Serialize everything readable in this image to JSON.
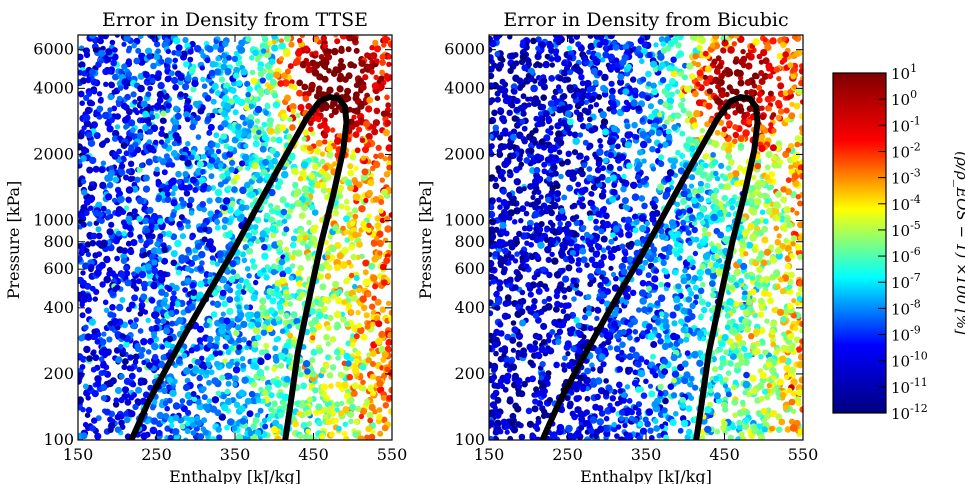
{
  "chart_data": [
    {
      "type": "scatter",
      "title": "Error in Density from TTSE",
      "xlabel": "Enthalpy [kJ/kg]",
      "ylabel": "Pressure [kPa]",
      "xlim": [
        150,
        550
      ],
      "ylim": [
        100,
        7000
      ],
      "yscale": "log",
      "xticks": [
        "150",
        "250",
        "350",
        "450",
        "550"
      ],
      "yticks": [
        {
          "value": 100,
          "label": "100"
        },
        {
          "value": 200,
          "label": "200"
        },
        {
          "value": 400,
          "label": "400"
        },
        {
          "value": 600,
          "label": "600"
        },
        {
          "value": 800,
          "label": "800"
        },
        {
          "value": 1000,
          "label": "1000"
        },
        {
          "value": 2000,
          "label": "2000"
        },
        {
          "value": 4000,
          "label": "4000"
        },
        {
          "value": 6000,
          "label": "6000"
        }
      ],
      "grid": false,
      "color_value": "log10 relative density error [%]",
      "error_field": {
        "base_log10": -9.5,
        "slope_h": 6.5,
        "dome_peak_log10": 2.5,
        "dome_peak_h": 470,
        "dome_peak_p": 4300
      },
      "saturation_curve": [
        {
          "h": 218,
          "p": 100
        },
        {
          "h": 240,
          "p": 150
        },
        {
          "h": 265,
          "p": 220
        },
        {
          "h": 290,
          "p": 320
        },
        {
          "h": 318,
          "p": 480
        },
        {
          "h": 345,
          "p": 700
        },
        {
          "h": 372,
          "p": 1050
        },
        {
          "h": 398,
          "p": 1550
        },
        {
          "h": 422,
          "p": 2200
        },
        {
          "h": 442,
          "p": 2950
        },
        {
          "h": 458,
          "p": 3500
        },
        {
          "h": 470,
          "p": 3650
        },
        {
          "h": 482,
          "p": 3600
        },
        {
          "h": 490,
          "p": 3300
        },
        {
          "h": 492,
          "p": 2800
        },
        {
          "h": 488,
          "p": 2100
        },
        {
          "h": 475,
          "p": 1300
        },
        {
          "h": 460,
          "p": 800
        },
        {
          "h": 445,
          "p": 450
        },
        {
          "h": 430,
          "p": 250
        },
        {
          "h": 420,
          "p": 140
        },
        {
          "h": 414,
          "p": 100
        }
      ]
    },
    {
      "type": "scatter",
      "title": "Error in Density from Bicubic",
      "xlabel": "Enthalpy [kJ/kg]",
      "ylabel": "Pressure [kPa]",
      "xlim": [
        150,
        550
      ],
      "ylim": [
        100,
        7000
      ],
      "yscale": "log",
      "xticks": [
        "150",
        "250",
        "350",
        "450",
        "550"
      ],
      "yticks": [
        {
          "value": 100,
          "label": "100"
        },
        {
          "value": 200,
          "label": "200"
        },
        {
          "value": 400,
          "label": "400"
        },
        {
          "value": 600,
          "label": "600"
        },
        {
          "value": 800,
          "label": "800"
        },
        {
          "value": 1000,
          "label": "1000"
        },
        {
          "value": 2000,
          "label": "2000"
        },
        {
          "value": 4000,
          "label": "4000"
        },
        {
          "value": 6000,
          "label": "6000"
        }
      ],
      "grid": false,
      "color_value": "log10 relative density error [%]",
      "error_field": {
        "base_log10": -10.5,
        "slope_h": 6.5,
        "dome_peak_log10": 1.2,
        "dome_peak_h": 460,
        "dome_peak_p": 4000
      },
      "saturation_curve": [
        {
          "h": 218,
          "p": 100
        },
        {
          "h": 240,
          "p": 150
        },
        {
          "h": 265,
          "p": 220
        },
        {
          "h": 290,
          "p": 320
        },
        {
          "h": 318,
          "p": 480
        },
        {
          "h": 345,
          "p": 700
        },
        {
          "h": 372,
          "p": 1050
        },
        {
          "h": 398,
          "p": 1550
        },
        {
          "h": 422,
          "p": 2200
        },
        {
          "h": 442,
          "p": 2950
        },
        {
          "h": 458,
          "p": 3500
        },
        {
          "h": 470,
          "p": 3650
        },
        {
          "h": 482,
          "p": 3600
        },
        {
          "h": 490,
          "p": 3300
        },
        {
          "h": 492,
          "p": 2800
        },
        {
          "h": 488,
          "p": 2100
        },
        {
          "h": 475,
          "p": 1300
        },
        {
          "h": 460,
          "p": 800
        },
        {
          "h": 445,
          "p": 450
        },
        {
          "h": 430,
          "p": 250
        },
        {
          "h": 420,
          "p": 140
        },
        {
          "h": 414,
          "p": 100
        }
      ]
    }
  ],
  "colorbar": {
    "label": "(ρ/ρ_EOS − 1) ×100 [%]",
    "scale": "log",
    "range_log10": [
      -12,
      1
    ],
    "tick_labels": [
      {
        "exp": 1,
        "label": "10^1"
      },
      {
        "exp": 0,
        "label": "10^0"
      },
      {
        "exp": -1,
        "label": "10^-1"
      },
      {
        "exp": -2,
        "label": "10^-2"
      },
      {
        "exp": -3,
        "label": "10^-3"
      },
      {
        "exp": -4,
        "label": "10^-4"
      },
      {
        "exp": -5,
        "label": "10^-5"
      },
      {
        "exp": -6,
        "label": "10^-6"
      },
      {
        "exp": -7,
        "label": "10^-7"
      },
      {
        "exp": -8,
        "label": "10^-8"
      },
      {
        "exp": -9,
        "label": "10^-9"
      },
      {
        "exp": -10,
        "label": "10^-10"
      },
      {
        "exp": -11,
        "label": "10^-11"
      },
      {
        "exp": -12,
        "label": "10^-12"
      }
    ],
    "colormap": "jet",
    "colormap_stops": [
      "#00007f",
      "#0000ff",
      "#00ffff",
      "#ffff00",
      "#ff0000",
      "#7f0000"
    ]
  }
}
